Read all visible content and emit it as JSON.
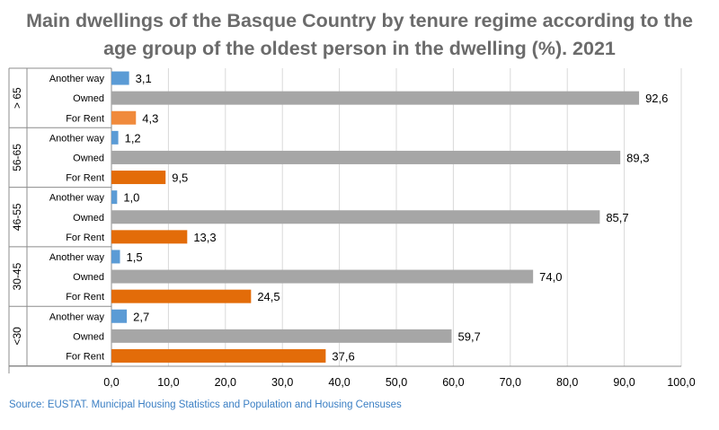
{
  "title_lines": [
    "Main dwellings of the Basque Country by tenure regime according to the",
    "age group of the oldest person in the dwelling (%). 2021"
  ],
  "source": "Source: EUSTAT. Municipal Housing Statistics and Population and Housing Censuses",
  "colors": {
    "Another way": "#5b9bd5",
    "Owned": "#a6a6a6",
    "For Rent": "#e36c09",
    "For Rent light": "#f08a3c",
    "title": "#6b6b6b",
    "source": "#3b7fc4",
    "grid": "#d9d9d9",
    "axis": "#8c8c8c"
  },
  "chart_data": {
    "type": "bar",
    "orientation": "horizontal",
    "title": "Main dwellings of the Basque Country by tenure regime according to the age group of the oldest person in the dwelling (%). 2021",
    "groups": [
      {
        "label": "> 65",
        "bars": [
          {
            "category": "Another way",
            "value": 3.1,
            "label": "3,1"
          },
          {
            "category": "Owned",
            "value": 92.6,
            "label": "92,6"
          },
          {
            "category": "For Rent",
            "value": 4.3,
            "label": "4,3"
          }
        ]
      },
      {
        "label": "56-65",
        "bars": [
          {
            "category": "Another way",
            "value": 1.2,
            "label": "1,2"
          },
          {
            "category": "Owned",
            "value": 89.3,
            "label": "89,3"
          },
          {
            "category": "For Rent",
            "value": 9.5,
            "label": "9,5"
          }
        ]
      },
      {
        "label": "46-55",
        "bars": [
          {
            "category": "Another way",
            "value": 1.0,
            "label": "1,0"
          },
          {
            "category": "Owned",
            "value": 85.7,
            "label": "85,7"
          },
          {
            "category": "For Rent",
            "value": 13.3,
            "label": "13,3"
          }
        ]
      },
      {
        "label": "30-45",
        "bars": [
          {
            "category": "Another way",
            "value": 1.5,
            "label": "1,5"
          },
          {
            "category": "Owned",
            "value": 74.0,
            "label": "74,0"
          },
          {
            "category": "For Rent",
            "value": 24.5,
            "label": "24,5"
          }
        ]
      },
      {
        "label": "<30",
        "bars": [
          {
            "category": "Another way",
            "value": 2.7,
            "label": "2,7"
          },
          {
            "category": "Owned",
            "value": 59.7,
            "label": "59,7"
          },
          {
            "category": "For Rent",
            "value": 37.6,
            "label": "37,6"
          }
        ]
      }
    ],
    "xlim": [
      0,
      100
    ],
    "xticks": [
      0,
      10,
      20,
      30,
      40,
      50,
      60,
      70,
      80,
      90,
      100
    ],
    "xtick_labels": [
      "0,0",
      "10,0",
      "20,0",
      "30,0",
      "40,0",
      "50,0",
      "60,0",
      "70,0",
      "80,0",
      "90,0",
      "100,0"
    ],
    "grid": "vertical",
    "legend": "none"
  }
}
